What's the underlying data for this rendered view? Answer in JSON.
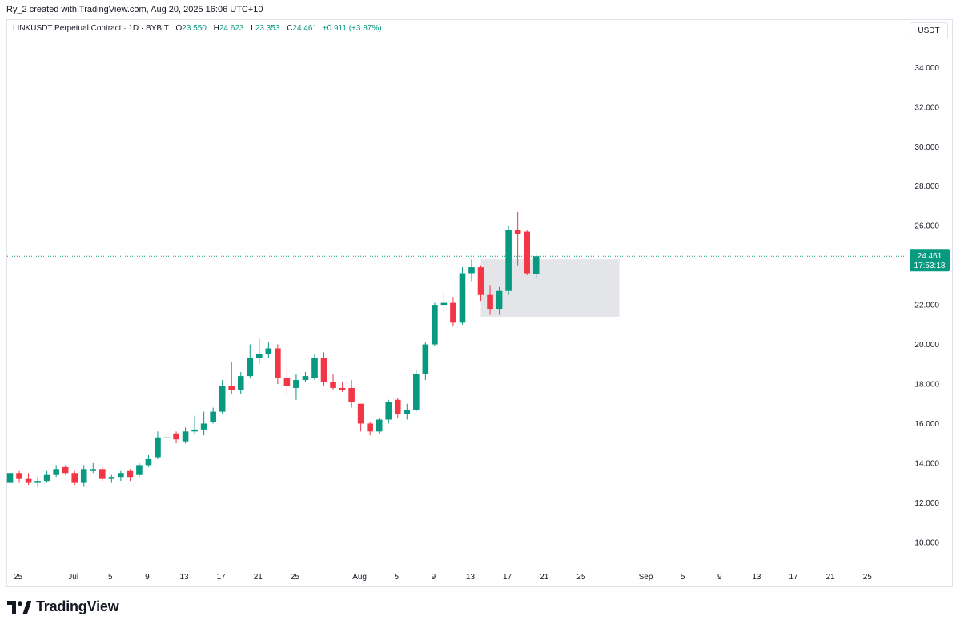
{
  "header": {
    "credit": "Ry_2 created with TradingView.com, Aug 20, 2025 16:06 UTC+10"
  },
  "legend": {
    "symbol": "LINKUSDT Perpetual Contract · 1D · BYBIT",
    "o_label": "O",
    "o_value": "23.550",
    "h_label": "H",
    "h_value": "24.623",
    "l_label": "L",
    "l_value": "23.353",
    "c_label": "C",
    "c_value": "24.461",
    "change": "+0.911 (+3.87%)"
  },
  "currency": "USDT",
  "brand": "TradingView",
  "colors": {
    "up": "#089981",
    "down": "#f23645",
    "zone": "#e0e2e5",
    "price_line": "#089981"
  },
  "chart_data": {
    "type": "candlestick",
    "ylim": [
      8.9,
      36.4
    ],
    "y_ticks": [
      "10.000",
      "12.000",
      "14.000",
      "16.000",
      "18.000",
      "20.000",
      "22.000",
      "24.000",
      "26.000",
      "28.000",
      "30.000",
      "32.000",
      "34.000"
    ],
    "x_ticks": [
      {
        "label": "25",
        "day": 0
      },
      {
        "label": "Jul",
        "day": 6
      },
      {
        "label": "5",
        "day": 10
      },
      {
        "label": "9",
        "day": 14
      },
      {
        "label": "13",
        "day": 18
      },
      {
        "label": "17",
        "day": 22
      },
      {
        "label": "21",
        "day": 26
      },
      {
        "label": "25",
        "day": 30
      },
      {
        "label": "Aug",
        "day": 37
      },
      {
        "label": "5",
        "day": 41
      },
      {
        "label": "9",
        "day": 45
      },
      {
        "label": "13",
        "day": 49
      },
      {
        "label": "17",
        "day": 53
      },
      {
        "label": "21",
        "day": 57
      },
      {
        "label": "25",
        "day": 61
      },
      {
        "label": "Sep",
        "day": 68
      },
      {
        "label": "5",
        "day": 72
      },
      {
        "label": "9",
        "day": 76
      },
      {
        "label": "13",
        "day": 80
      },
      {
        "label": "17",
        "day": 84
      },
      {
        "label": "21",
        "day": 88
      },
      {
        "label": "25",
        "day": 92
      }
    ],
    "start_date": "Jun 25",
    "candles": [
      {
        "o": 13.0,
        "h": 13.8,
        "l": 12.8,
        "c": 13.5
      },
      {
        "o": 13.5,
        "h": 13.6,
        "l": 13.0,
        "c": 13.2
      },
      {
        "o": 13.2,
        "h": 13.5,
        "l": 12.9,
        "c": 13.0
      },
      {
        "o": 13.0,
        "h": 13.3,
        "l": 12.8,
        "c": 13.1
      },
      {
        "o": 13.1,
        "h": 13.6,
        "l": 13.0,
        "c": 13.4
      },
      {
        "o": 13.4,
        "h": 13.9,
        "l": 13.3,
        "c": 13.7
      },
      {
        "o": 13.8,
        "h": 13.9,
        "l": 13.4,
        "c": 13.5
      },
      {
        "o": 13.5,
        "h": 13.6,
        "l": 12.9,
        "c": 13.0
      },
      {
        "o": 13.0,
        "h": 13.9,
        "l": 12.8,
        "c": 13.7
      },
      {
        "o": 13.6,
        "h": 14.0,
        "l": 13.5,
        "c": 13.7
      },
      {
        "o": 13.7,
        "h": 13.8,
        "l": 13.1,
        "c": 13.2
      },
      {
        "o": 13.2,
        "h": 13.4,
        "l": 13.0,
        "c": 13.3
      },
      {
        "o": 13.3,
        "h": 13.6,
        "l": 13.1,
        "c": 13.5
      },
      {
        "o": 13.6,
        "h": 13.7,
        "l": 13.1,
        "c": 13.3
      },
      {
        "o": 13.4,
        "h": 14.0,
        "l": 13.3,
        "c": 13.9
      },
      {
        "o": 13.9,
        "h": 14.4,
        "l": 13.8,
        "c": 14.2
      },
      {
        "o": 14.3,
        "h": 15.6,
        "l": 14.2,
        "c": 15.3
      },
      {
        "o": 15.3,
        "h": 15.9,
        "l": 15.1,
        "c": 15.3
      },
      {
        "o": 15.5,
        "h": 15.6,
        "l": 15.0,
        "c": 15.2
      },
      {
        "o": 15.1,
        "h": 15.8,
        "l": 15.0,
        "c": 15.6
      },
      {
        "o": 15.6,
        "h": 16.4,
        "l": 15.5,
        "c": 15.7
      },
      {
        "o": 15.7,
        "h": 16.6,
        "l": 15.4,
        "c": 16.0
      },
      {
        "o": 16.1,
        "h": 16.8,
        "l": 16.0,
        "c": 16.6
      },
      {
        "o": 16.6,
        "h": 18.2,
        "l": 16.5,
        "c": 17.9
      },
      {
        "o": 17.9,
        "h": 19.1,
        "l": 17.5,
        "c": 17.7
      },
      {
        "o": 17.7,
        "h": 18.6,
        "l": 17.5,
        "c": 18.4
      },
      {
        "o": 18.4,
        "h": 20.0,
        "l": 18.3,
        "c": 19.3
      },
      {
        "o": 19.3,
        "h": 20.3,
        "l": 19.0,
        "c": 19.5
      },
      {
        "o": 19.5,
        "h": 20.1,
        "l": 19.3,
        "c": 19.8
      },
      {
        "o": 19.8,
        "h": 20.0,
        "l": 18.0,
        "c": 18.3
      },
      {
        "o": 18.3,
        "h": 18.8,
        "l": 17.4,
        "c": 17.9
      },
      {
        "o": 17.8,
        "h": 18.5,
        "l": 17.2,
        "c": 18.2
      },
      {
        "o": 18.2,
        "h": 18.6,
        "l": 18.1,
        "c": 18.4
      },
      {
        "o": 18.3,
        "h": 19.5,
        "l": 18.2,
        "c": 19.3
      },
      {
        "o": 19.3,
        "h": 19.6,
        "l": 17.9,
        "c": 18.1
      },
      {
        "o": 18.1,
        "h": 18.5,
        "l": 17.7,
        "c": 17.8
      },
      {
        "o": 17.8,
        "h": 18.1,
        "l": 17.6,
        "c": 17.7
      },
      {
        "o": 17.8,
        "h": 18.2,
        "l": 16.8,
        "c": 17.1
      },
      {
        "o": 17.0,
        "h": 17.0,
        "l": 15.6,
        "c": 16.0
      },
      {
        "o": 16.0,
        "h": 16.1,
        "l": 15.4,
        "c": 15.6
      },
      {
        "o": 15.6,
        "h": 16.3,
        "l": 15.5,
        "c": 16.2
      },
      {
        "o": 16.2,
        "h": 17.2,
        "l": 16.0,
        "c": 17.1
      },
      {
        "o": 17.2,
        "h": 17.3,
        "l": 16.3,
        "c": 16.5
      },
      {
        "o": 16.5,
        "h": 17.0,
        "l": 16.2,
        "c": 16.7
      },
      {
        "o": 16.7,
        "h": 18.7,
        "l": 16.6,
        "c": 18.5
      },
      {
        "o": 18.5,
        "h": 20.1,
        "l": 18.2,
        "c": 20.0
      },
      {
        "o": 20.0,
        "h": 22.1,
        "l": 19.9,
        "c": 22.0
      },
      {
        "o": 22.0,
        "h": 22.7,
        "l": 21.6,
        "c": 22.1
      },
      {
        "o": 22.1,
        "h": 22.4,
        "l": 20.9,
        "c": 21.1
      },
      {
        "o": 21.1,
        "h": 23.9,
        "l": 21.0,
        "c": 23.6
      },
      {
        "o": 23.6,
        "h": 24.3,
        "l": 23.2,
        "c": 23.9
      },
      {
        "o": 23.9,
        "h": 24.0,
        "l": 22.2,
        "c": 22.5
      },
      {
        "o": 22.5,
        "h": 23.0,
        "l": 21.5,
        "c": 21.8
      },
      {
        "o": 21.8,
        "h": 22.9,
        "l": 21.5,
        "c": 22.7
      },
      {
        "o": 22.7,
        "h": 26.0,
        "l": 22.5,
        "c": 25.8
      },
      {
        "o": 25.8,
        "h": 26.7,
        "l": 24.0,
        "c": 25.6
      },
      {
        "o": 25.7,
        "h": 25.8,
        "l": 23.5,
        "c": 23.6
      },
      {
        "o": 23.55,
        "h": 24.623,
        "l": 23.353,
        "c": 24.461
      }
    ],
    "zone": {
      "from_day": 51,
      "to_day": 66,
      "low": 21.4,
      "high": 24.3
    },
    "last_price": "24.461",
    "countdown": "17:53:18"
  }
}
